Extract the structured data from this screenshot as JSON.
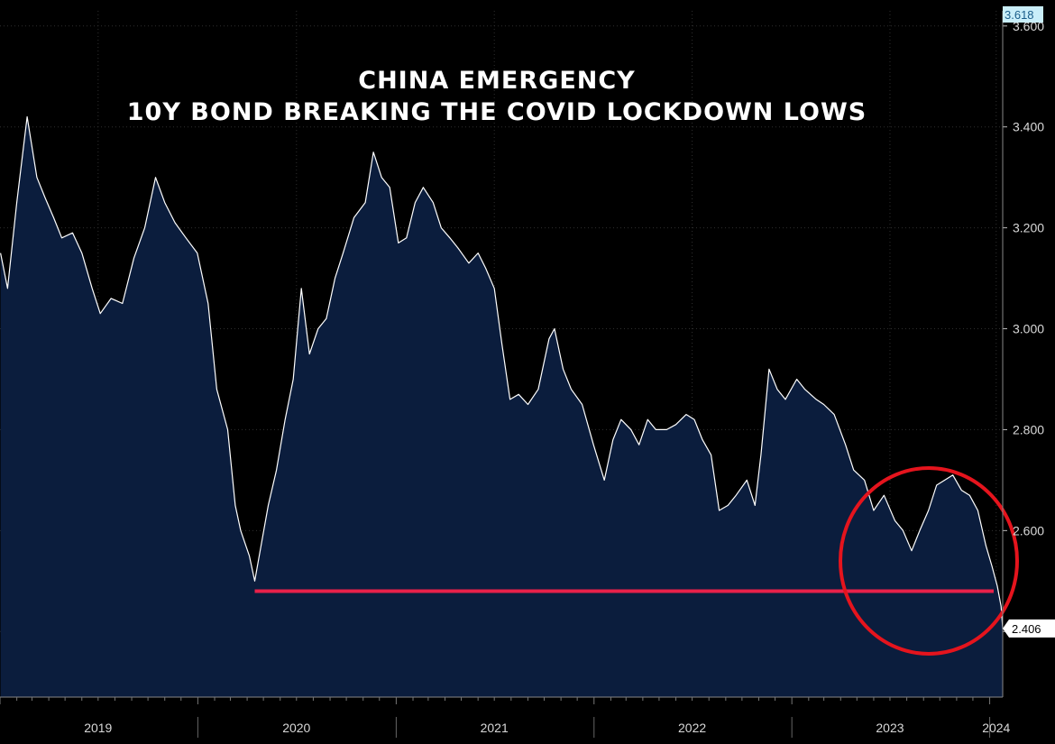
{
  "chart_data": {
    "type": "area",
    "title_lines": [
      "CHINA EMERGENCY",
      "10Y BOND BREAKING THE COVID LOCKDOWN LOWS"
    ],
    "ylim": [
      2.27,
      3.63
    ],
    "xlim": [
      "2019-01-01",
      "2024-01-25"
    ],
    "y_ticks": [
      2.4,
      2.6,
      2.8,
      3.0,
      3.2,
      3.4,
      3.6
    ],
    "y_tick_labels": [
      "2.400",
      "2.600",
      "2.800",
      "3.000",
      "3.200",
      "3.400",
      "3.600"
    ],
    "x_tick_labels": [
      {
        "label": "2019",
        "at": "2019-07-01"
      },
      {
        "label": "2020",
        "at": "2020-07-01"
      },
      {
        "label": "2021",
        "at": "2021-07-01"
      },
      {
        "label": "2022",
        "at": "2022-07-01"
      },
      {
        "label": "2023",
        "at": "2023-07-01"
      },
      {
        "label": "2024",
        "at": "2024-01-13"
      }
    ],
    "year_boundaries": [
      "2020-01-01",
      "2021-01-01",
      "2022-01-01",
      "2023-01-01",
      "2024-01-01"
    ],
    "grid": true,
    "series": [
      {
        "points": [
          [
            "2019-01-02",
            3.15
          ],
          [
            "2019-01-15",
            3.08
          ],
          [
            "2019-02-01",
            3.25
          ],
          [
            "2019-02-20",
            3.42
          ],
          [
            "2019-03-10",
            3.3
          ],
          [
            "2019-03-25",
            3.26
          ],
          [
            "2019-04-10",
            3.22
          ],
          [
            "2019-04-25",
            3.18
          ],
          [
            "2019-05-15",
            3.19
          ],
          [
            "2019-06-01",
            3.15
          ],
          [
            "2019-06-20",
            3.08
          ],
          [
            "2019-07-05",
            3.03
          ],
          [
            "2019-07-25",
            3.06
          ],
          [
            "2019-08-15",
            3.05
          ],
          [
            "2019-09-05",
            3.14
          ],
          [
            "2019-09-25",
            3.2
          ],
          [
            "2019-10-15",
            3.3
          ],
          [
            "2019-11-01",
            3.25
          ],
          [
            "2019-11-20",
            3.21
          ],
          [
            "2019-12-10",
            3.18
          ],
          [
            "2019-12-31",
            3.15
          ],
          [
            "2020-01-20",
            3.05
          ],
          [
            "2020-02-05",
            2.88
          ],
          [
            "2020-02-25",
            2.8
          ],
          [
            "2020-03-10",
            2.65
          ],
          [
            "2020-03-20",
            2.6
          ],
          [
            "2020-04-05",
            2.55
          ],
          [
            "2020-04-15",
            2.5
          ],
          [
            "2020-04-25",
            2.56
          ],
          [
            "2020-05-10",
            2.65
          ],
          [
            "2020-05-25",
            2.72
          ],
          [
            "2020-06-10",
            2.82
          ],
          [
            "2020-06-25",
            2.9
          ],
          [
            "2020-07-10",
            3.08
          ],
          [
            "2020-07-25",
            2.95
          ],
          [
            "2020-08-10",
            3.0
          ],
          [
            "2020-08-25",
            3.02
          ],
          [
            "2020-09-10",
            3.1
          ],
          [
            "2020-09-25",
            3.15
          ],
          [
            "2020-10-15",
            3.22
          ],
          [
            "2020-11-05",
            3.25
          ],
          [
            "2020-11-20",
            3.35
          ],
          [
            "2020-12-05",
            3.3
          ],
          [
            "2020-12-20",
            3.28
          ],
          [
            "2021-01-05",
            3.17
          ],
          [
            "2021-01-20",
            3.18
          ],
          [
            "2021-02-05",
            3.25
          ],
          [
            "2021-02-20",
            3.28
          ],
          [
            "2021-03-10",
            3.25
          ],
          [
            "2021-03-25",
            3.2
          ],
          [
            "2021-04-10",
            3.18
          ],
          [
            "2021-04-25",
            3.16
          ],
          [
            "2021-05-15",
            3.13
          ],
          [
            "2021-06-01",
            3.15
          ],
          [
            "2021-06-15",
            3.12
          ],
          [
            "2021-07-01",
            3.08
          ],
          [
            "2021-07-15",
            2.97
          ],
          [
            "2021-07-30",
            2.86
          ],
          [
            "2021-08-15",
            2.87
          ],
          [
            "2021-09-01",
            2.85
          ],
          [
            "2021-09-20",
            2.88
          ],
          [
            "2021-10-10",
            2.98
          ],
          [
            "2021-10-20",
            3.0
          ],
          [
            "2021-11-05",
            2.92
          ],
          [
            "2021-11-20",
            2.88
          ],
          [
            "2021-12-10",
            2.85
          ],
          [
            "2021-12-31",
            2.77
          ],
          [
            "2022-01-20",
            2.7
          ],
          [
            "2022-02-05",
            2.78
          ],
          [
            "2022-02-20",
            2.82
          ],
          [
            "2022-03-10",
            2.8
          ],
          [
            "2022-03-25",
            2.77
          ],
          [
            "2022-04-10",
            2.82
          ],
          [
            "2022-04-25",
            2.8
          ],
          [
            "2022-05-15",
            2.8
          ],
          [
            "2022-06-01",
            2.81
          ],
          [
            "2022-06-20",
            2.83
          ],
          [
            "2022-07-05",
            2.82
          ],
          [
            "2022-07-20",
            2.78
          ],
          [
            "2022-08-05",
            2.75
          ],
          [
            "2022-08-20",
            2.64
          ],
          [
            "2022-09-05",
            2.65
          ],
          [
            "2022-09-20",
            2.67
          ],
          [
            "2022-10-10",
            2.7
          ],
          [
            "2022-10-25",
            2.65
          ],
          [
            "2022-11-05",
            2.75
          ],
          [
            "2022-11-20",
            2.92
          ],
          [
            "2022-12-05",
            2.88
          ],
          [
            "2022-12-20",
            2.86
          ],
          [
            "2023-01-10",
            2.9
          ],
          [
            "2023-01-25",
            2.88
          ],
          [
            "2023-02-15",
            2.86
          ],
          [
            "2023-03-01",
            2.85
          ],
          [
            "2023-03-20",
            2.83
          ],
          [
            "2023-04-10",
            2.77
          ],
          [
            "2023-04-25",
            2.72
          ],
          [
            "2023-05-15",
            2.7
          ],
          [
            "2023-06-01",
            2.64
          ],
          [
            "2023-06-20",
            2.67
          ],
          [
            "2023-07-10",
            2.62
          ],
          [
            "2023-07-25",
            2.6
          ],
          [
            "2023-08-10",
            2.56
          ],
          [
            "2023-08-25",
            2.6
          ],
          [
            "2023-09-10",
            2.64
          ],
          [
            "2023-09-25",
            2.69
          ],
          [
            "2023-10-10",
            2.7
          ],
          [
            "2023-10-25",
            2.71
          ],
          [
            "2023-11-10",
            2.68
          ],
          [
            "2023-11-25",
            2.67
          ],
          [
            "2023-12-10",
            2.64
          ],
          [
            "2023-12-25",
            2.57
          ],
          [
            "2024-01-05",
            2.53
          ],
          [
            "2024-01-15",
            2.49
          ],
          [
            "2024-01-22",
            2.45
          ],
          [
            "2024-01-25",
            2.406
          ]
        ]
      }
    ],
    "annotations": [
      {
        "type": "horizontal-line",
        "y": 2.48,
        "x_start": "2020-04-15",
        "x_end": "2024-01-25",
        "color": "#e8214a"
      },
      {
        "type": "circle",
        "color": "#e5141d",
        "around": "2023-07 to 2024-01"
      }
    ],
    "last_value_label": "2.406",
    "top_value_label": "3.618",
    "colors": {
      "background": "#000000",
      "area_fill": "#0b1d3d",
      "line": "#ffffff",
      "grid": "#2f2f2f",
      "hline": "#e8214a",
      "circle": "#e5141d",
      "top_badge_bg": "#c9eef9",
      "top_badge_text": "#1a5d8a",
      "last_badge_bg": "#ffffff",
      "last_badge_text": "#000000"
    }
  }
}
